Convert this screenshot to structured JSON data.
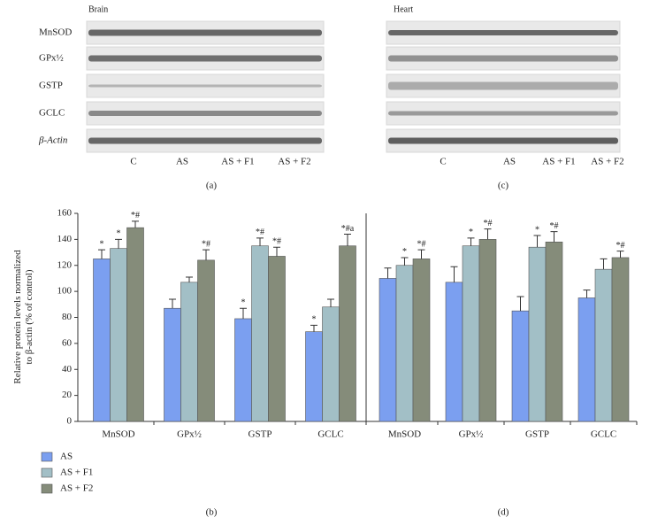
{
  "blots": [
    {
      "title": "Brain",
      "rows": [
        "MnSOD",
        "GPx½",
        "GSTP",
        "GCLC",
        "β-Actin"
      ],
      "lanes": [
        "C",
        "AS",
        "AS + F1",
        "AS + F2"
      ],
      "caption": "(a)"
    },
    {
      "title": "Heart",
      "lanes": [
        "C",
        "AS",
        "AS + F1",
        "AS + F2"
      ],
      "caption": "(c)"
    }
  ],
  "chart_data": [
    {
      "type": "bar",
      "caption": "(b)",
      "y_label": [
        "Relative protein levels normalized",
        "to β-actin (% of control)"
      ],
      "categories": [
        "MnSOD",
        "GPx½",
        "GSTP",
        "GCLC"
      ],
      "series": [
        {
          "name": "AS",
          "color": "#7b9ff0",
          "values": [
            125,
            87,
            79,
            69
          ],
          "errors": [
            7,
            7,
            8,
            5
          ],
          "annotations": [
            "*",
            null,
            "*",
            "*"
          ]
        },
        {
          "name": "AS + F1",
          "color": "#a2bfc6",
          "values": [
            133,
            107,
            135,
            88
          ],
          "errors": [
            7,
            4,
            6,
            6
          ],
          "annotations": [
            "*",
            null,
            "*#",
            null
          ]
        },
        {
          "name": "AS + F2",
          "color": "#858c7a",
          "values": [
            149,
            124,
            127,
            135
          ],
          "errors": [
            5,
            8,
            7,
            9
          ],
          "annotations": [
            "*#",
            "*#",
            "*#",
            "*#a"
          ]
        }
      ],
      "ylim": [
        0,
        160
      ],
      "yticks": [
        0,
        20,
        40,
        60,
        80,
        100,
        120,
        140,
        160
      ]
    },
    {
      "type": "bar",
      "caption": "(d)",
      "categories": [
        "MnSOD",
        "GPx½",
        "GSTP",
        "GCLC"
      ],
      "series": [
        {
          "color": "#7b9ff0",
          "values": [
            110,
            107,
            85,
            95
          ],
          "errors": [
            8,
            12,
            11,
            6
          ],
          "annotations": [
            null,
            null,
            null,
            null
          ]
        },
        {
          "color": "#a2bfc6",
          "values": [
            120,
            135,
            134,
            117
          ],
          "errors": [
            6,
            6,
            9,
            8
          ],
          "annotations": [
            "*",
            "*",
            "*",
            null
          ]
        },
        {
          "color": "#858c7a",
          "values": [
            125,
            140,
            138,
            126
          ],
          "errors": [
            7,
            8,
            8,
            5
          ],
          "annotations": [
            "*#",
            "*#",
            "*#",
            "*#"
          ]
        }
      ],
      "ylim": [
        0,
        160
      ]
    }
  ]
}
